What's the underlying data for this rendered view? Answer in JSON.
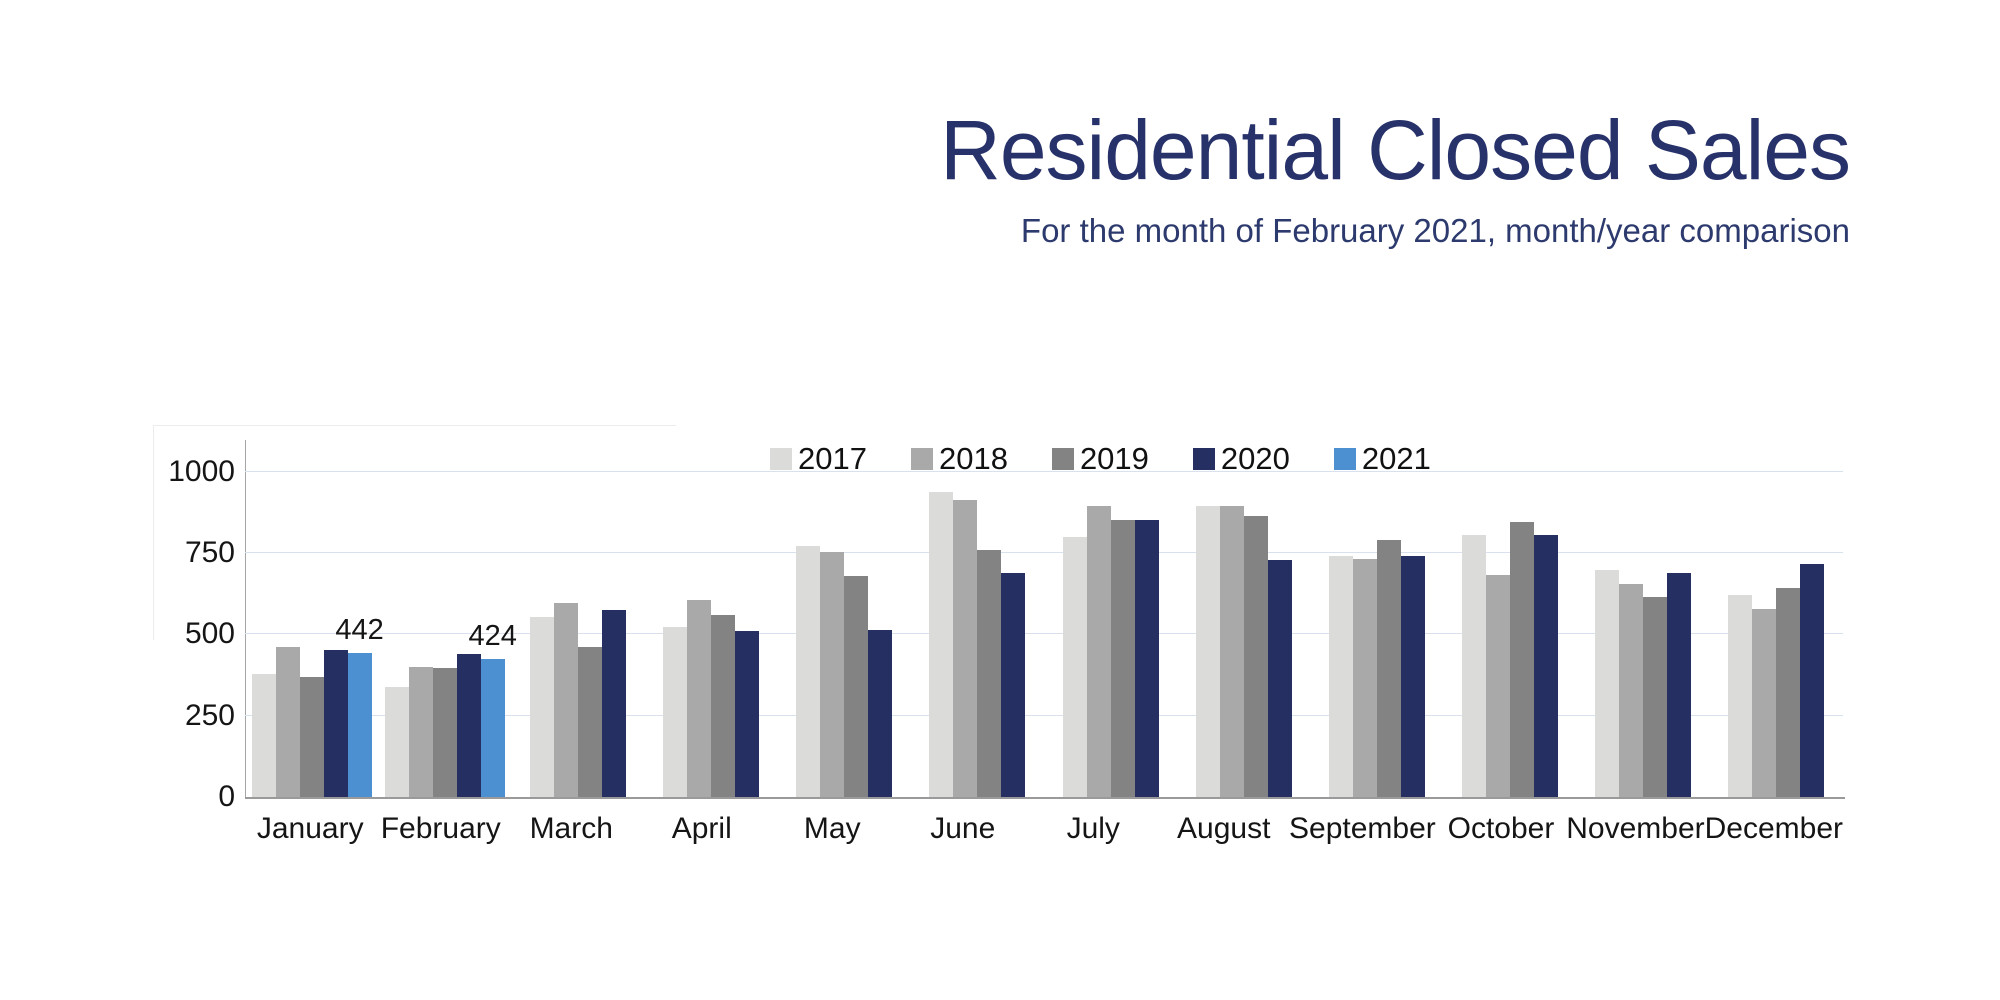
{
  "header": {
    "title": "Residential Closed Sales",
    "subtitle": "For the month of February 2021, month/year comparison",
    "title_color": "#27316a"
  },
  "chart_data": {
    "type": "bar",
    "title": "Residential Closed Sales",
    "subtitle": "For the month of February 2021, month/year comparison",
    "categories": [
      "January",
      "February",
      "March",
      "April",
      "May",
      "June",
      "July",
      "August",
      "September",
      "October",
      "November",
      "December"
    ],
    "series": [
      {
        "name": "2017",
        "color": "#dbdbda",
        "values": [
          378,
          337,
          553,
          524,
          771,
          937,
          801,
          896,
          742,
          805,
          698,
          622
        ]
      },
      {
        "name": "2018",
        "color": "#a9a9a9",
        "values": [
          460,
          400,
          598,
          606,
          753,
          915,
          894,
          896,
          733,
          682,
          655,
          578
        ]
      },
      {
        "name": "2019",
        "color": "#838383",
        "values": [
          368,
          398,
          460,
          561,
          679,
          760,
          853,
          866,
          791,
          846,
          614,
          642
        ]
      },
      {
        "name": "2020",
        "color": "#262f62",
        "values": [
          453,
          440,
          575,
          510,
          513,
          688,
          853,
          730,
          742,
          806,
          689,
          717
        ]
      },
      {
        "name": "2021",
        "color": "#4c90d1",
        "values": [
          442,
          424,
          null,
          null,
          null,
          null,
          null,
          null,
          null,
          null,
          null,
          null
        ]
      }
    ],
    "data_labels": [
      {
        "category": "January",
        "series": "2021",
        "text": "442"
      },
      {
        "category": "February",
        "series": "2021",
        "text": "424"
      }
    ],
    "xlabel": "",
    "ylabel": "",
    "yticks": [
      0,
      250,
      500,
      750,
      1000
    ],
    "ylim": [
      0,
      1100
    ],
    "grid": "horizontal",
    "grid_color": "#d9e0ee",
    "axis_color": "#9a9a9a",
    "legend_position": "top"
  }
}
